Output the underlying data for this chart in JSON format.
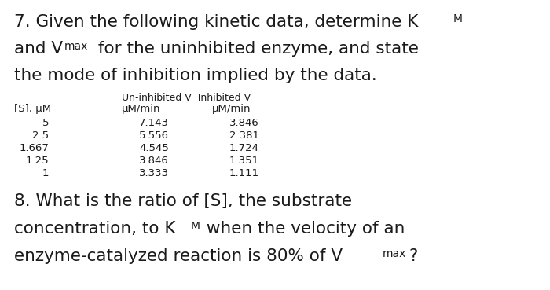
{
  "background_color": "#ffffff",
  "text_color": "#1a1a1a",
  "title_fontsize": 15.5,
  "table_fontsize": 9.5,
  "q8_fontsize": 15.5,
  "sub_fontsize": 10,
  "table_data": [
    [
      "5",
      "7.143",
      "3.846"
    ],
    [
      "2.5",
      "5.556",
      "2.381"
    ],
    [
      "1.667",
      "4.545",
      "1.724"
    ],
    [
      "1.25",
      "3.846",
      "1.351"
    ],
    [
      "1",
      "3.333",
      "1.111"
    ]
  ]
}
